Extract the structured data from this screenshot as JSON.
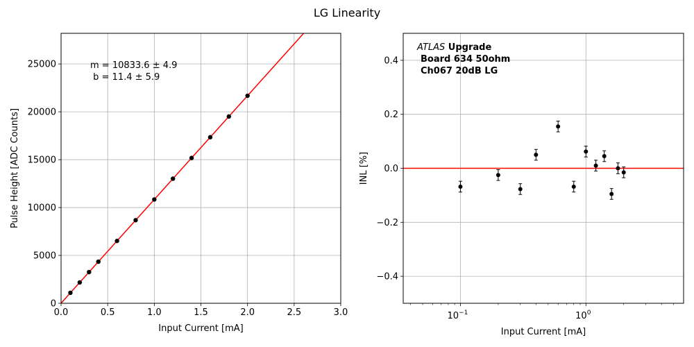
{
  "suptitle": "LG Linearity",
  "chart_data": [
    {
      "type": "scatter",
      "xlabel": "Input Current [mA]",
      "ylabel": "Pulse Height [ADC Counts]",
      "xlim": [
        0,
        3.0
      ],
      "ylim": [
        0,
        28200
      ],
      "grid": true,
      "x_ticks": [
        0.0,
        0.5,
        1.0,
        1.5,
        2.0,
        2.5,
        3.0
      ],
      "x_tick_labels": [
        "0.0",
        "0.5",
        "1.0",
        "1.5",
        "2.0",
        "2.5",
        "3.0"
      ],
      "y_ticks": [
        0,
        5000,
        10000,
        15000,
        20000,
        25000
      ],
      "y_tick_labels": [
        "0",
        "5000",
        "10000",
        "15000",
        "20000",
        "25000"
      ],
      "series": [
        {
          "x": [
            0.1,
            0.2,
            0.3,
            0.4,
            0.6,
            0.8,
            1.0,
            1.2,
            1.4,
            1.6,
            1.8,
            2.0
          ],
          "y": [
            1095,
            2178,
            3261,
            4345,
            6512,
            8678,
            10845,
            13012,
            15179,
            17346,
            19513,
            21679
          ],
          "color": "#000000"
        }
      ],
      "fit": {
        "slope": 10833.6,
        "intercept": 11.4,
        "color": "#ff0000"
      },
      "annotation": [
        "m = 10833.6 ± 4.9",
        " b = 11.4 ± 5.9"
      ]
    },
    {
      "type": "scatter",
      "xlabel": "Input Current [mA]",
      "ylabel": "INL [%]",
      "x_scale": "log",
      "xlim": [
        0.035,
        6
      ],
      "ylim": [
        -0.5,
        0.5
      ],
      "grid": true,
      "x_ticks": [
        0.1,
        1
      ],
      "x_tick_labels": [
        "10",
        "10"
      ],
      "x_tick_exponents": [
        "−1",
        "0"
      ],
      "y_ticks": [
        -0.4,
        -0.2,
        0.0,
        0.2,
        0.4
      ],
      "y_tick_labels": [
        "−0.4",
        "−0.2",
        "0.0",
        "0.2",
        "0.4"
      ],
      "series": [
        {
          "x": [
            0.1,
            0.2,
            0.3,
            0.4,
            0.6,
            0.8,
            1.0,
            1.2,
            1.4,
            1.6,
            1.8,
            2.0
          ],
          "y": [
            -0.068,
            -0.025,
            -0.077,
            0.05,
            0.155,
            -0.068,
            0.062,
            0.01,
            0.045,
            -0.095,
            0.0,
            -0.015
          ],
          "yerr": [
            0.02,
            0.02,
            0.02,
            0.02,
            0.02,
            0.02,
            0.02,
            0.02,
            0.02,
            0.02,
            0.02,
            0.02
          ],
          "color": "#000000"
        }
      ],
      "reference_line": {
        "y": 0.0,
        "color": "#ff0000"
      },
      "annotation": {
        "atlas": "ATLAS",
        "upgrade": " Upgrade",
        "line2": "Board 634 50ohm",
        "line3": "Ch067 20dB LG"
      }
    }
  ]
}
